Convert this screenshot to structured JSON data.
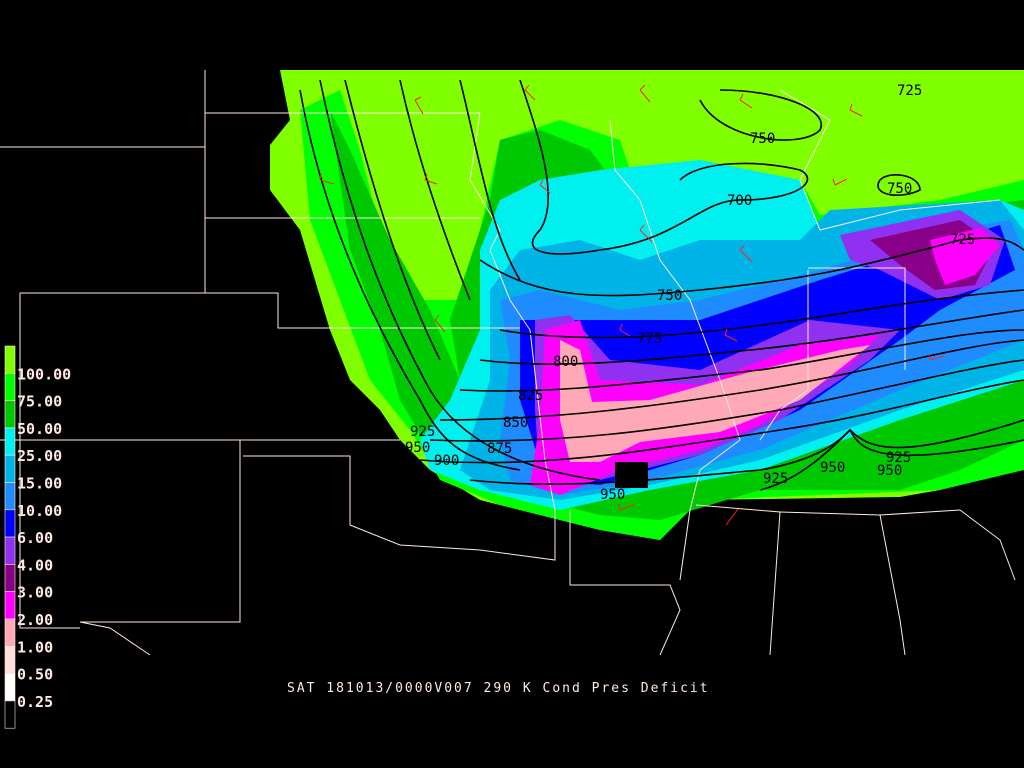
{
  "caption": "SAT 181013/0000V007 290 K Cond Pres Deficit",
  "legend": {
    "labels": [
      "100.00",
      "75.00",
      "50.00",
      "25.00",
      "15.00",
      "10.00",
      "6.00",
      "4.00",
      "3.00",
      "2.00",
      "1.00",
      "0.50",
      "0.25"
    ],
    "colors": [
      "#80ff00",
      "#00ff00",
      "#00c800",
      "#00f0f0",
      "#00b4e8",
      "#1e8cff",
      "#0000ff",
      "#9030f0",
      "#880088",
      "#ff00ff",
      "#ffa8b8",
      "#ffe0d8",
      "#ffffff",
      "#000000"
    ]
  },
  "contour_labels": [
    "750",
    "750",
    "700",
    "750",
    "775",
    "800",
    "825",
    "850",
    "875",
    "900",
    "950",
    "925",
    "950",
    "925",
    "950",
    "950",
    "925",
    "725",
    "725"
  ],
  "colors": {
    "contour": "#000000",
    "boundaries": "#ffe8e0",
    "wind_barbs": "#ff2020",
    "background": "#000000"
  }
}
